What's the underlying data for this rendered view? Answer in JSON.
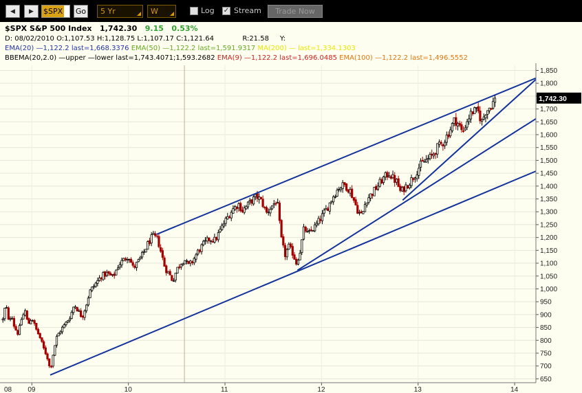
{
  "toolbar": {
    "back_icon": "triangle-left",
    "forward_icon": "triangle-right",
    "symbol": "$SPX",
    "go_label": "Go",
    "range": "5 Yr",
    "frequency": "W",
    "log_label": "Log",
    "log_checked": false,
    "stream_label": "Stream",
    "stream_checked": true,
    "trade_label": "Trade Now"
  },
  "header": {
    "symbol_name": "$SPX S&P 500 Index",
    "last": "1,742.30",
    "change": "9.15",
    "change_pct": "0.53%",
    "ohlc_line": "D: 08/02/2010 O:1,107.53 H:1,128.75 L:1,107.17 C:1,121.64",
    "r_text": "R:21.58",
    "y_text": "Y:"
  },
  "indicators": {
    "ema20": "EMA(20) —1,122.2 last=1,668.3376",
    "ema50": "EMA(50) —1,122.2 last=1,591.9317",
    "ma200": "MA(200) — last=1,334.1303",
    "bbema": "BBEMA(20,2.0) —upper —lower last=1,743.4071;1,593.2682",
    "ema9": "EMA(9) —1,122.2 last=1,696.0485",
    "ema100": "EMA(100) —1,122.2 last=1,496.5552"
  },
  "colors": {
    "background": "#fefef0",
    "bull_candle": "#000000",
    "bear_candle": "#a40000",
    "trendline": "#13329a",
    "price_tag": "#000000"
  },
  "chart_data": {
    "type": "candlestick",
    "symbol": "$SPX",
    "period": "weekly",
    "last_price": 1742.3,
    "last_price_label": "1,742.30",
    "x_tick_labels": [
      "08",
      "09",
      "10",
      "11",
      "12",
      "13",
      "14"
    ],
    "y_tick_labels": [
      "650",
      "700",
      "750",
      "800",
      "850",
      "900",
      "950",
      "1,000",
      "1,050",
      "1,100",
      "1,150",
      "1,200",
      "1,250",
      "1,300",
      "1,350",
      "1,400",
      "1,450",
      "1,500",
      "1,550",
      "1,600",
      "1,650",
      "1,700",
      "1,750",
      "1,800",
      "1,850"
    ],
    "ylim": [
      635,
      1870
    ],
    "xlim": [
      2008.67,
      2014.22
    ],
    "vertical_marker_year": 2010.58,
    "close_anchors": [
      [
        2008.7,
        880
      ],
      [
        2008.73,
        945
      ],
      [
        2008.76,
        870
      ],
      [
        2008.79,
        905
      ],
      [
        2008.82,
        850
      ],
      [
        2008.86,
        825
      ],
      [
        2008.89,
        880
      ],
      [
        2008.93,
        915
      ],
      [
        2008.96,
        860
      ],
      [
        2009.0,
        890
      ],
      [
        2009.04,
        845
      ],
      [
        2009.08,
        815
      ],
      [
        2009.12,
        770
      ],
      [
        2009.16,
        735
      ],
      [
        2009.19,
        683
      ],
      [
        2009.23,
        768
      ],
      [
        2009.26,
        815
      ],
      [
        2009.3,
        840
      ],
      [
        2009.35,
        865
      ],
      [
        2009.4,
        895
      ],
      [
        2009.44,
        940
      ],
      [
        2009.48,
        915
      ],
      [
        2009.52,
        890
      ],
      [
        2009.56,
        935
      ],
      [
        2009.6,
        990
      ],
      [
        2009.66,
        1020
      ],
      [
        2009.72,
        1050
      ],
      [
        2009.78,
        1060
      ],
      [
        2009.84,
        1045
      ],
      [
        2009.9,
        1095
      ],
      [
        2010.0,
        1130
      ],
      [
        2010.05,
        1080
      ],
      [
        2010.1,
        1105
      ],
      [
        2010.15,
        1135
      ],
      [
        2010.2,
        1175
      ],
      [
        2010.25,
        1205
      ],
      [
        2010.3,
        1195
      ],
      [
        2010.34,
        1140
      ],
      [
        2010.38,
        1080
      ],
      [
        2010.42,
        1060
      ],
      [
        2010.46,
        1030
      ],
      [
        2010.5,
        1075
      ],
      [
        2010.54,
        1100
      ],
      [
        2010.58,
        1115
      ],
      [
        2010.62,
        1090
      ],
      [
        2010.66,
        1105
      ],
      [
        2010.72,
        1145
      ],
      [
        2010.78,
        1175
      ],
      [
        2010.84,
        1195
      ],
      [
        2010.9,
        1190
      ],
      [
        2010.96,
        1235
      ],
      [
        2011.02,
        1275
      ],
      [
        2011.08,
        1310
      ],
      [
        2011.14,
        1330
      ],
      [
        2011.18,
        1305
      ],
      [
        2011.22,
        1320
      ],
      [
        2011.28,
        1345
      ],
      [
        2011.33,
        1360
      ],
      [
        2011.38,
        1340
      ],
      [
        2011.43,
        1295
      ],
      [
        2011.48,
        1320
      ],
      [
        2011.54,
        1345
      ],
      [
        2011.58,
        1200
      ],
      [
        2011.62,
        1130
      ],
      [
        2011.66,
        1165
      ],
      [
        2011.7,
        1140
      ],
      [
        2011.74,
        1100
      ],
      [
        2011.78,
        1150
      ],
      [
        2011.82,
        1240
      ],
      [
        2011.86,
        1210
      ],
      [
        2011.9,
        1230
      ],
      [
        2011.94,
        1245
      ],
      [
        2012.0,
        1280
      ],
      [
        2012.06,
        1315
      ],
      [
        2012.12,
        1360
      ],
      [
        2012.18,
        1395
      ],
      [
        2012.24,
        1405
      ],
      [
        2012.3,
        1380
      ],
      [
        2012.34,
        1340
      ],
      [
        2012.38,
        1300
      ],
      [
        2012.42,
        1285
      ],
      [
        2012.46,
        1345
      ],
      [
        2012.52,
        1370
      ],
      [
        2012.58,
        1400
      ],
      [
        2012.64,
        1430
      ],
      [
        2012.7,
        1450
      ],
      [
        2012.74,
        1430
      ],
      [
        2012.78,
        1415
      ],
      [
        2012.82,
        1375
      ],
      [
        2012.86,
        1395
      ],
      [
        2012.9,
        1410
      ],
      [
        2012.96,
        1440
      ],
      [
        2013.02,
        1480
      ],
      [
        2013.08,
        1500
      ],
      [
        2013.14,
        1515
      ],
      [
        2013.2,
        1550
      ],
      [
        2013.26,
        1570
      ],
      [
        2013.32,
        1610
      ],
      [
        2013.38,
        1660
      ],
      [
        2013.42,
        1640
      ],
      [
        2013.46,
        1605
      ],
      [
        2013.5,
        1650
      ],
      [
        2013.56,
        1690
      ],
      [
        2013.62,
        1690
      ],
      [
        2013.66,
        1650
      ],
      [
        2013.7,
        1690
      ],
      [
        2013.76,
        1715
      ],
      [
        2013.8,
        1742.3
      ]
    ],
    "trendlines": [
      {
        "name": "upper channel",
        "from": [
          2010.29,
          1212
        ],
        "to": [
          2014.22,
          1820
        ]
      },
      {
        "name": "lower channel",
        "from": [
          2009.19,
          665
        ],
        "to": [
          2014.22,
          1458
        ]
      },
      {
        "name": "middle channel",
        "from": [
          2011.75,
          1072
        ],
        "to": [
          2014.22,
          1662
        ]
      },
      {
        "name": "steep support",
        "from": [
          2012.84,
          1345
        ],
        "to": [
          2014.22,
          1815
        ]
      }
    ]
  }
}
